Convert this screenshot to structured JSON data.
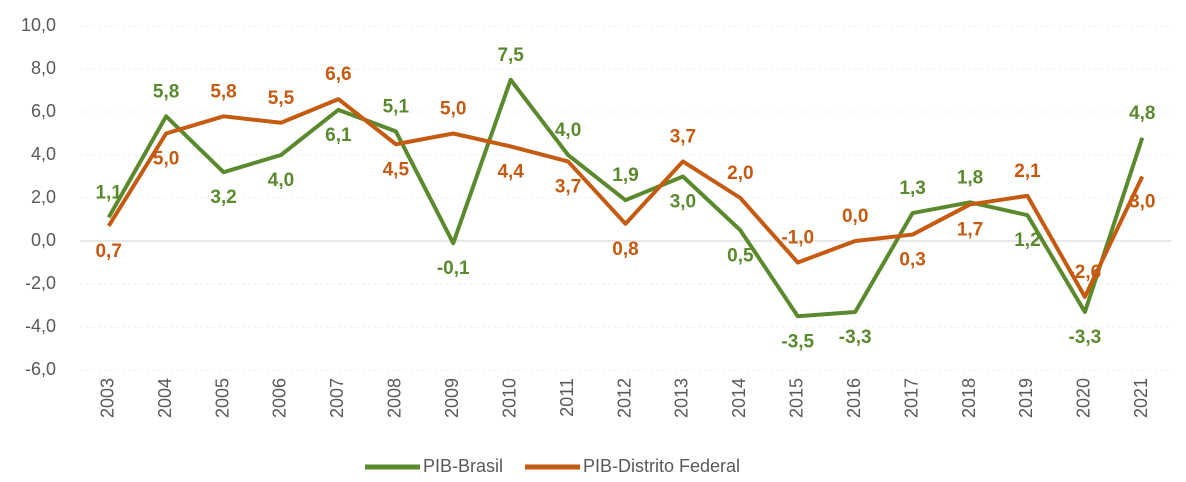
{
  "chart_data": {
    "type": "line",
    "categories": [
      "2003",
      "2004",
      "2005",
      "2006",
      "2007",
      "2008",
      "2009",
      "2010",
      "2011",
      "2012",
      "2013",
      "2014",
      "2015",
      "2016",
      "2017",
      "2018",
      "2019",
      "2020",
      "2021"
    ],
    "series": [
      {
        "name": "PIB-Brasil",
        "color": "#5b8a2e",
        "values": [
          1.1,
          5.8,
          3.2,
          4.0,
          6.1,
          5.1,
          -0.1,
          7.5,
          4.0,
          1.9,
          3.0,
          0.5,
          -3.5,
          -3.3,
          1.3,
          1.8,
          1.2,
          -3.3,
          4.8
        ],
        "value_labels": [
          "1,1",
          "5,8",
          "3,2",
          "4,0",
          "6,1",
          "5,1",
          "-0,1",
          "7,5",
          "4,0",
          "1,9",
          "3,0",
          "0,5",
          "-3,5",
          "-3,3",
          "1,3",
          "1,8",
          "1,2",
          "-3,3",
          "4,8"
        ]
      },
      {
        "name": "PIB-Distrito Federal",
        "color": "#c55a11",
        "values": [
          0.7,
          5.0,
          5.8,
          5.5,
          6.6,
          4.5,
          5.0,
          4.4,
          3.7,
          0.8,
          3.7,
          2.0,
          -1.0,
          0.0,
          0.3,
          1.7,
          2.1,
          -2.6,
          3.0
        ],
        "value_labels": [
          "0,7",
          "5,0",
          "5,8",
          "5,5",
          "6,6",
          "4,5",
          "5,0",
          "4,4",
          "3,7",
          "0,8",
          "3,7",
          "2,0",
          "-1,0",
          "0,0",
          "0,3",
          "1,7",
          "2,1",
          "-2,6",
          "3,0"
        ]
      }
    ],
    "ylim": [
      -6,
      10
    ],
    "yticks": [
      {
        "value": -6,
        "label": "-6,0"
      },
      {
        "value": -4,
        "label": "-4,0"
      },
      {
        "value": -2,
        "label": "-2,0"
      },
      {
        "value": 0,
        "label": "0,0"
      },
      {
        "value": 2,
        "label": "2,0"
      },
      {
        "value": 4,
        "label": "4,0"
      },
      {
        "value": 6,
        "label": "6,0"
      },
      {
        "value": 8,
        "label": "8,0"
      },
      {
        "value": 10,
        "label": "10,0"
      }
    ],
    "grid": true,
    "legend": "bottom"
  }
}
